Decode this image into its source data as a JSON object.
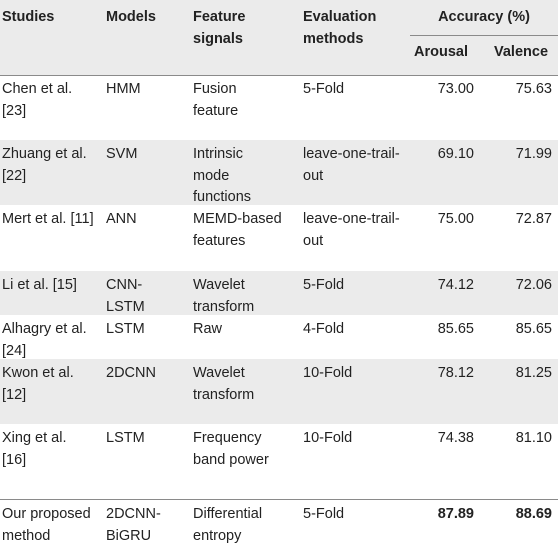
{
  "header": {
    "studies": "Studies",
    "models": "Models",
    "feature_signals": "Feature signals",
    "evaluation_methods": "Evaluation methods",
    "accuracy": "Accuracy (%)",
    "arousal": "Arousal",
    "valence": "Valence"
  },
  "rows": [
    {
      "study": "Chen et al. [23]",
      "model": "HMM",
      "feature": "Fusion feature",
      "evaluation": "5-Fold",
      "arousal": "73.00",
      "valence": "75.63",
      "bold": false
    },
    {
      "study": "Zhuang et al. [22]",
      "model": "SVM",
      "feature": "Intrinsic mode functions",
      "evaluation": "leave-one-trail-out",
      "arousal": "69.10",
      "valence": "71.99",
      "bold": false
    },
    {
      "study": "Mert et al. [11]",
      "model": "ANN",
      "feature": "MEMD-based features",
      "evaluation": "leave-one-trail-out",
      "arousal": "75.00",
      "valence": "72.87",
      "bold": false
    },
    {
      "study": "Li et al. [15]",
      "model": "CNN-LSTM",
      "feature": "Wavelet transform",
      "evaluation": "5-Fold",
      "arousal": "74.12",
      "valence": "72.06",
      "bold": false
    },
    {
      "study": "Alhagry et al. [24]",
      "model": "LSTM",
      "feature": "Raw",
      "evaluation": "4-Fold",
      "arousal": "85.65",
      "valence": "85.65",
      "bold": false
    },
    {
      "study": "Kwon et al. [12]",
      "model": "2DCNN",
      "feature": "Wavelet transform",
      "evaluation": "10-Fold",
      "arousal": "78.12",
      "valence": "81.25",
      "bold": false
    },
    {
      "study": "Xing et al. [16]",
      "model": "LSTM",
      "feature": "Frequency band power",
      "evaluation": "10-Fold",
      "arousal": "74.38",
      "valence": "81.10",
      "bold": false
    },
    {
      "study": "Our proposed method",
      "model": "2DCNN-BiGRU",
      "feature": "Differential entropy",
      "evaluation": "5-Fold",
      "arousal": "87.89",
      "valence": "88.69",
      "bold": true
    }
  ]
}
